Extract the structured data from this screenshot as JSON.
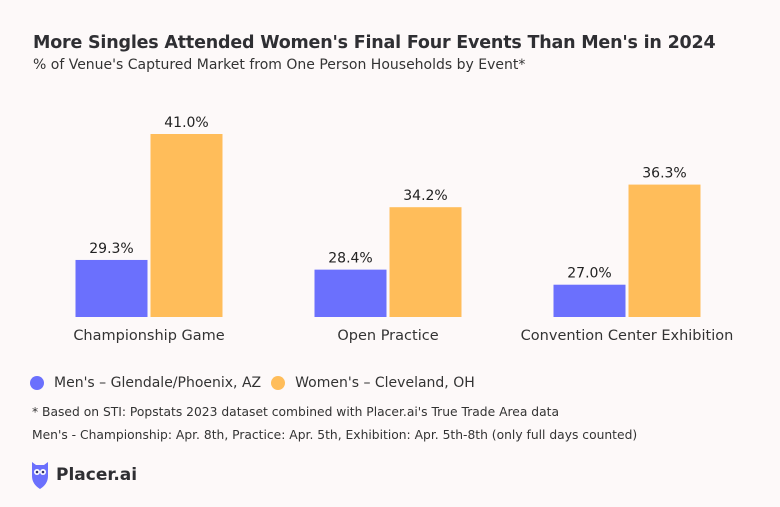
{
  "chart_data": {
    "type": "bar",
    "title": "More Singles Attended Women's Final Four Events Than Men's in 2024",
    "subtitle": "% of Venue's Captured Market from One Person Households by Event*",
    "categories": [
      "Championship Game",
      "Open Practice",
      "Convention Center Exhibition"
    ],
    "series": [
      {
        "name": "Men's – Glendale/Phoenix, AZ",
        "values": [
          29.3,
          28.4,
          27.0
        ],
        "labels": [
          "29.3%",
          "28.4%",
          "27.0%"
        ],
        "color": "#6b70fd"
      },
      {
        "name": "Women's – Cleveland, OH",
        "values": [
          41.0,
          34.2,
          36.3
        ],
        "labels": [
          "41.0%",
          "34.2%",
          "36.3%"
        ],
        "color": "#ffbd5a"
      }
    ],
    "ylim": [
      24,
      41
    ],
    "grid": false,
    "legend": "bottom-left"
  },
  "notes": [
    "* Based on STI: Popstats 2023 dataset combined with Placer.ai's True Trade Area data",
    "Men's - Championship: Apr. 8th,  Practice: Apr. 5th, Exhibition: Apr. 5th-8th (only full days counted)"
  ],
  "logo": {
    "text": "Placer.ai",
    "color": "#6b70fd"
  }
}
